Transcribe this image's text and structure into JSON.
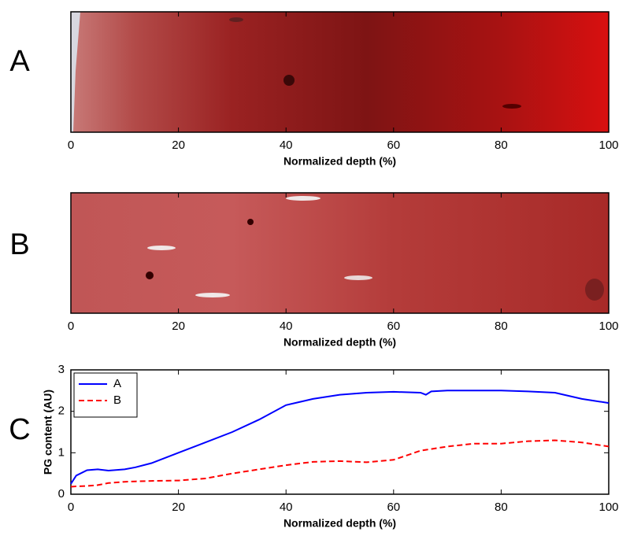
{
  "chart_data": [
    {
      "type": "image",
      "panel": "A",
      "xlabel": "Normalized depth (%)",
      "xlim": [
        0,
        100
      ],
      "xticks": [
        0,
        20,
        40,
        60,
        80,
        100
      ]
    },
    {
      "type": "image",
      "panel": "B",
      "xlabel": "Normalized depth (%)",
      "xlim": [
        0,
        100
      ],
      "xticks": [
        0,
        20,
        40,
        60,
        80,
        100
      ]
    },
    {
      "type": "line",
      "panel": "C",
      "xlabel": "Normalized depth (%)",
      "ylabel": "PG content (AU)",
      "xlim": [
        0,
        100
      ],
      "xticks": [
        0,
        20,
        40,
        60,
        80,
        100
      ],
      "ylim": [
        0,
        3
      ],
      "yticks": [
        0,
        1,
        2,
        3
      ],
      "legend": "upper left",
      "x": [
        0,
        1,
        3,
        5,
        7,
        10,
        12,
        15,
        20,
        25,
        30,
        35,
        40,
        45,
        50,
        55,
        60,
        65,
        66,
        67,
        70,
        75,
        80,
        85,
        90,
        95,
        100
      ],
      "series": [
        {
          "name": "A",
          "color": "#0000ff",
          "dash": "solid",
          "values": [
            0.25,
            0.45,
            0.58,
            0.6,
            0.57,
            0.6,
            0.65,
            0.75,
            1.0,
            1.25,
            1.5,
            1.8,
            2.15,
            2.3,
            2.4,
            2.45,
            2.47,
            2.45,
            2.4,
            2.48,
            2.5,
            2.5,
            2.5,
            2.48,
            2.45,
            2.3,
            2.2
          ]
        },
        {
          "name": "B",
          "color": "#ff0000",
          "dash": "dashed",
          "values": [
            0.18,
            0.19,
            0.2,
            0.22,
            0.27,
            0.3,
            0.31,
            0.32,
            0.33,
            0.38,
            0.5,
            0.6,
            0.7,
            0.78,
            0.8,
            0.77,
            0.83,
            1.05,
            1.07,
            1.09,
            1.15,
            1.22,
            1.22,
            1.28,
            1.3,
            1.25,
            1.15
          ]
        }
      ]
    }
  ]
}
